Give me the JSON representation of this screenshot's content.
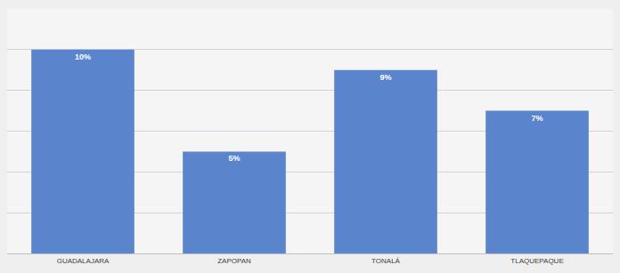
{
  "chart_data": {
    "type": "bar",
    "categories": [
      "GUADALAJARA",
      "ZAPOPAN",
      "TONALÁ",
      "TLAQUEPAQUE"
    ],
    "values": [
      10,
      5,
      9,
      7
    ],
    "value_labels": [
      "10%",
      "5%",
      "9%",
      "7%"
    ],
    "color": "#5a84cb",
    "ylim": [
      0,
      12
    ],
    "yticks": [
      0,
      2,
      4,
      6,
      8,
      10,
      12
    ],
    "grid": true,
    "data_labels": true,
    "tick_labels": "x"
  }
}
